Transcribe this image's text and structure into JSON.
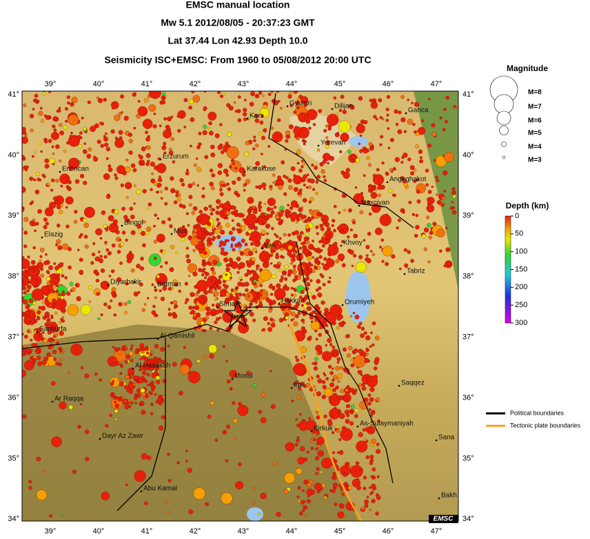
{
  "header": {
    "title": "EMSC manual location",
    "event": "Mw 5.1  2012/08/05 - 20:37:23 GMT",
    "location": "Lat 37.44    Lon 42.93     Depth  10.0",
    "seismicity": "Seismicity ISC+EMSC: From 1960 to 05/08/2012 20:00 UTC"
  },
  "map": {
    "lon_ticks": [
      "39°",
      "40°",
      "41°",
      "42°",
      "43°",
      "44°",
      "45°",
      "46°",
      "47°"
    ],
    "lat_ticks": [
      "41°",
      "40°",
      "39°",
      "38°",
      "37°",
      "36°",
      "35°",
      "34°"
    ],
    "cities": [
      "Gyumri",
      "Dilijan",
      "Ganca",
      "Kars",
      "Yerevan",
      "Erzincan",
      "Erzurum",
      "Karakose",
      "Angeghakot",
      "Naxcivan",
      "Bingol",
      "Mus",
      "Elazig",
      "Van",
      "Khvoy",
      "Tabriz",
      "Diyarbakir",
      "Batman",
      "Sirnak",
      "Hakkari",
      "Orumiyeh",
      "Sanliurfa",
      "Al Qamishli",
      "Al Hasakah",
      "Mosul",
      "Irbil",
      "Saqqez",
      "Ar Raqqa",
      "As-Sulaymaniyah",
      "Kirkuk",
      "Sana",
      "Dayr Az Zawr",
      "Abu Kamal",
      "Bakh"
    ],
    "event_label": "EMSC",
    "watermark": "EMSC"
  },
  "legend": {
    "magnitude_title": "Magnitude",
    "magnitudes": [
      "M=8",
      "M=7",
      "M=6",
      "M=5",
      "M=4",
      "M=3"
    ],
    "depth_title": "Depth (km)",
    "depth_ticks": [
      0,
      50,
      100,
      150,
      200,
      250,
      300
    ],
    "boundaries": [
      "Political boundaries",
      "Tectonic plate boundaries"
    ]
  }
}
